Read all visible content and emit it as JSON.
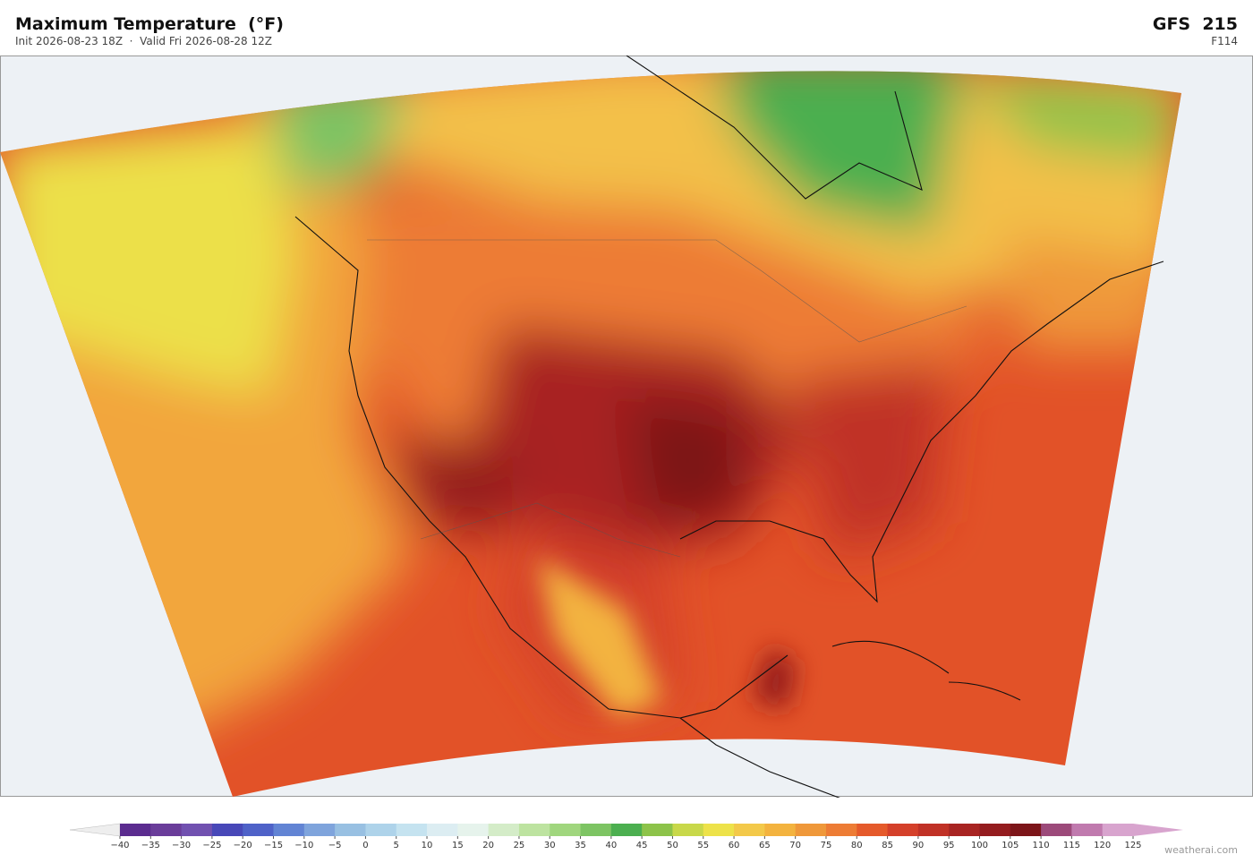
{
  "header": {
    "title": "Maximum Temperature  (°F)",
    "subtitle": "Init 2026-08-23 18Z  ·  Valid Fri 2026-08-28 12Z",
    "model": "GFS  215",
    "forecast_hour": "F114"
  },
  "colorbar": {
    "ticks": [
      "−40",
      "−35",
      "−30",
      "−25",
      "−20",
      "−15",
      "−10",
      "−5",
      "0",
      "5",
      "10",
      "15",
      "20",
      "25",
      "30",
      "35",
      "40",
      "45",
      "50",
      "55",
      "60",
      "65",
      "70",
      "75",
      "80",
      "85",
      "90",
      "95",
      "100",
      "105",
      "110",
      "115",
      "120",
      "125"
    ],
    "under_color": "#eeeeee",
    "over_color": "#d8a4ce",
    "colors": [
      "#5b2c8f",
      "#6a3d9a",
      "#7151b0",
      "#4848b8",
      "#4f62c8",
      "#6284d4",
      "#7fa4dc",
      "#98c0e2",
      "#aed3ea",
      "#c5e3f0",
      "#dcedf2",
      "#e6f3ec",
      "#d4ecc8",
      "#bde3a0",
      "#a0d67e",
      "#7dc463",
      "#4caf50",
      "#8dc34a",
      "#c8d84a",
      "#ede24a",
      "#f3c94a",
      "#f3b33f",
      "#ef983a",
      "#ed7c35",
      "#e55a2b",
      "#d4402a",
      "#c03126",
      "#a82422",
      "#941c1f",
      "#7c1519",
      "#9c4a7a",
      "#c07aae",
      "#d8a4ce"
    ]
  },
  "footer": {
    "credit": "weatherai.com"
  }
}
